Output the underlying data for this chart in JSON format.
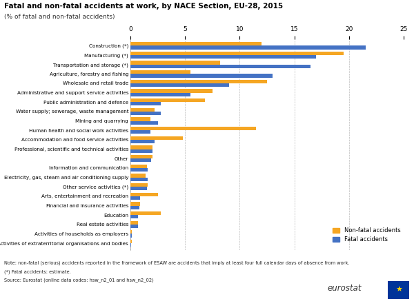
{
  "title": "Fatal and non-fatal accidents at work, by NACE Section, EU-28, 2015",
  "subtitle": "(% of fatal and non-fatal accidents)",
  "categories": [
    "Construction (*)",
    "Manufacturing (*)",
    "Transportation and storage (*)",
    "Agriculture, forestry and fishing",
    "Wholesale and retail trade",
    "Administrative and support service activities",
    "Public administration and defence",
    "Water supply; sewerage, waste management",
    "Mining and quarrying",
    "Human health and social work activities",
    "Accommodation and food service activities",
    "Professional, scientific and technical activities",
    "Other",
    "Information and communication",
    "Electricity, gas, steam and air conditioning supply",
    "Other service activities (*)",
    "Arts, entertainment and recreation",
    "Financial and insurance activities",
    "Education",
    "Real estate activities",
    "Activities of households as employers",
    "Activities of extraterritorial organisations and bodies"
  ],
  "non_fatal": [
    12.0,
    19.5,
    8.2,
    5.5,
    12.5,
    7.5,
    6.8,
    2.2,
    1.8,
    11.5,
    4.8,
    2.0,
    2.0,
    1.5,
    1.4,
    1.6,
    2.5,
    0.9,
    2.8,
    0.7,
    0.1,
    0.1
  ],
  "fatal": [
    21.5,
    17.0,
    16.5,
    13.0,
    9.0,
    5.5,
    2.8,
    2.8,
    2.5,
    1.8,
    2.2,
    2.0,
    1.9,
    1.6,
    1.6,
    1.5,
    0.9,
    0.8,
    0.7,
    0.7,
    0.1,
    0.05
  ],
  "color_nonfatal": "#F5A623",
  "color_fatal": "#4472C4",
  "xlim": [
    0,
    25
  ],
  "xticks": [
    0,
    5,
    10,
    15,
    20,
    25
  ],
  "legend_labels": [
    "Non-fatal accidents",
    "Fatal accidents"
  ],
  "note_line1": "Note: non-fatal (serious) accidents reported in the framework of ESAW are accidents that imply at least four full calendar days of absence from work.",
  "note_line2": "(*) Fatal accidents: estimate.",
  "note_line3": "Source: Eurostat (online data codes: hsw_n2_01 and hsw_n2_02)"
}
